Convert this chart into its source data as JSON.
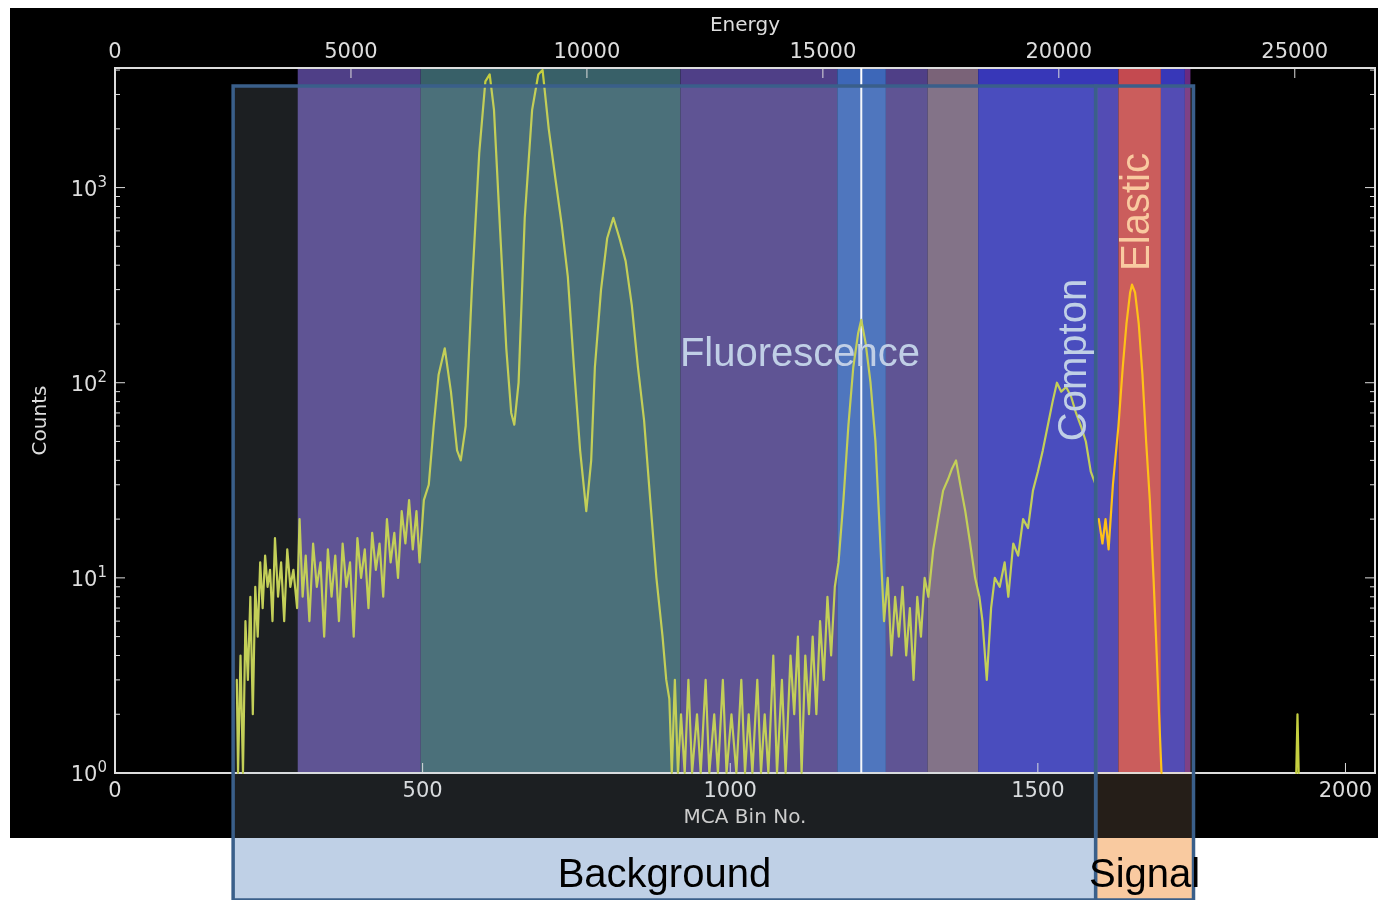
{
  "chart_data": {
    "type": "line",
    "xlabel": "MCA Bin No.",
    "ylabel": "Counts",
    "x2label": "Energy",
    "log": "y",
    "xlim": [
      0,
      2048
    ],
    "xticks": [
      0,
      500,
      1000,
      1500,
      2000
    ],
    "x2lim": [
      0,
      26700
    ],
    "x2ticks": [
      0,
      5000,
      10000,
      15000,
      20000,
      25000
    ],
    "ylim": [
      1,
      4100
    ],
    "yticks": [
      {
        "value": 1,
        "label": "10$^{0}$"
      },
      {
        "value": 2,
        "label": null
      },
      {
        "value": 3,
        "label": null
      },
      {
        "value": 4,
        "label": null
      },
      {
        "value": 5,
        "label": null
      },
      {
        "value": 6,
        "label": null
      },
      {
        "value": 7,
        "label": null
      },
      {
        "value": 8,
        "label": null
      },
      {
        "value": 9,
        "label": null
      },
      {
        "value": 10,
        "label": "10$^{1}$"
      },
      {
        "value": 20,
        "label": null
      },
      {
        "value": 30,
        "label": null
      },
      {
        "value": 40,
        "label": null
      },
      {
        "value": 50,
        "label": null
      },
      {
        "value": 60,
        "label": null
      },
      {
        "value": 70,
        "label": null
      },
      {
        "value": 80,
        "label": null
      },
      {
        "value": 90,
        "label": null
      },
      {
        "value": 100,
        "label": "10$^{2}$"
      },
      {
        "value": 200,
        "label": null
      },
      {
        "value": 300,
        "label": null
      },
      {
        "value": 400,
        "label": null
      },
      {
        "value": 500,
        "label": null
      },
      {
        "value": 600,
        "label": null
      },
      {
        "value": 700,
        "label": null
      },
      {
        "value": 800,
        "label": null
      },
      {
        "value": 900,
        "label": null
      },
      {
        "value": 1000,
        "label": "10$^{3}$"
      },
      {
        "value": 2000,
        "label": null
      },
      {
        "value": 3000,
        "label": null
      },
      {
        "value": 4000,
        "label": null
      }
    ],
    "bands": [
      {
        "axis": "x",
        "from": 297,
        "to": 497,
        "color": "#4f3f87"
      },
      {
        "axis": "x",
        "from": 497,
        "to": 919,
        "color": "#386068"
      },
      {
        "axis": "x",
        "from": 919,
        "to": 1174,
        "color": "#4f3f87"
      },
      {
        "axis": "x",
        "from": 1174,
        "to": 1253,
        "color": "#3d67b8"
      },
      {
        "axis": "x",
        "from": 1253,
        "to": 1321,
        "color": "#4f3f87"
      },
      {
        "axis": "x",
        "from": 1321,
        "to": 1403,
        "color": "#7a6378"
      },
      {
        "axis": "x",
        "from": 1403,
        "to": 1631,
        "color": "#3737b8"
      },
      {
        "axis": "x",
        "from": 1631,
        "to": 1700,
        "color": "#c44a50"
      },
      {
        "axis": "x",
        "from": 1700,
        "to": 1739,
        "color": "#3737b8"
      },
      {
        "axis": "x",
        "from": 1739,
        "to": 1748,
        "color": "#6a2a80"
      },
      {
        "axis": "x",
        "from": 192,
        "to": 1594,
        "color": "#bfd0e6",
        "label": "Background"
      },
      {
        "axis": "x",
        "from": 1594,
        "to": 1753,
        "color": "#f9caa0",
        "label": "Signal"
      }
    ],
    "ref_lines": [
      {
        "axis": "x",
        "value": 1213,
        "color": "#ffffff"
      }
    ],
    "annotations": [
      "Fluorescence",
      "Compton",
      "Elastic"
    ],
    "series": [
      {
        "color": "#c5cf40",
        "x": [
          198,
          200,
          204,
          208,
          212,
          216,
          220,
          224,
          228,
          232,
          236,
          240,
          244,
          248,
          252,
          256,
          260,
          265,
          270,
          275,
          280,
          285,
          290,
          296,
          300,
          305,
          310,
          316,
          322,
          328,
          334,
          340,
          346,
          352,
          358,
          364,
          370,
          376,
          382,
          388,
          394,
          400,
          406,
          412,
          418,
          424,
          430,
          436,
          442,
          448,
          454,
          460,
          466,
          472,
          478,
          484,
          490,
          495,
          502,
          510,
          518,
          526,
          536,
          546,
          556,
          562,
          570,
          580,
          592,
          602,
          609,
          616,
          626,
          636,
          644,
          649,
          656,
          666,
          678,
          688,
          695,
          705,
          716,
          726,
          736,
          746,
          756,
          766,
          774,
          780,
          790,
          800,
          810,
          820,
          830,
          840,
          850,
          860,
          870,
          880,
          890,
          896,
          901,
          905,
          910,
          915,
          920,
          926,
          932,
          938,
          946,
          952,
          960,
          966,
          974,
          980,
          988,
          994,
          1002,
          1010,
          1018,
          1024,
          1030,
          1036,
          1044,
          1050,
          1056,
          1062,
          1070,
          1076,
          1084,
          1090,
          1098,
          1104,
          1110,
          1116,
          1122,
          1128,
          1134,
          1140,
          1146,
          1152,
          1158,
          1164,
          1170,
          1176,
          1184,
          1192,
          1200,
          1208,
          1213,
          1220,
          1228,
          1236,
          1244,
          1250,
          1256,
          1262,
          1268,
          1274,
          1280,
          1286,
          1292,
          1298,
          1304,
          1310,
          1316,
          1322,
          1330,
          1338,
          1346,
          1354,
          1360,
          1367,
          1374,
          1382,
          1390,
          1398,
          1405,
          1410,
          1417,
          1424,
          1430,
          1438,
          1446,
          1452,
          1460,
          1468,
          1476,
          1484,
          1492,
          1500,
          1508,
          1516,
          1524,
          1531,
          1538,
          1546,
          1554,
          1562,
          1570,
          1578,
          1586,
          1594
        ],
        "values": [
          3,
          1,
          4,
          1,
          6,
          3,
          8,
          2,
          9,
          5,
          12,
          7,
          13,
          9,
          11,
          6,
          16,
          8,
          12,
          6,
          14,
          9,
          11,
          7,
          20,
          8,
          13,
          6,
          15,
          9,
          12,
          5,
          14,
          8,
          13,
          6,
          15,
          9,
          12,
          5,
          16,
          10,
          14,
          7,
          17,
          11,
          15,
          8,
          20,
          12,
          17,
          10,
          22,
          15,
          25,
          14,
          22,
          12,
          25,
          30,
          60,
          110,
          150,
          90,
          45,
          40,
          60,
          300,
          1500,
          3500,
          3800,
          2500,
          600,
          150,
          70,
          61,
          100,
          700,
          2500,
          3800,
          4000,
          2000,
          1100,
          650,
          350,
          120,
          45,
          22,
          40,
          120,
          300,
          550,
          700,
          550,
          420,
          250,
          120,
          64,
          25,
          10,
          5,
          3,
          2.4,
          1,
          3,
          1,
          2,
          1,
          3,
          1,
          2,
          1,
          3,
          1,
          2,
          1,
          3,
          1,
          2,
          1,
          3,
          1,
          2,
          1,
          3,
          1,
          2,
          1,
          4,
          1,
          3,
          1,
          4,
          2,
          5,
          1,
          4,
          2,
          5,
          2,
          6,
          3,
          8,
          4,
          9,
          12,
          25,
          60,
          120,
          180,
          210,
          160,
          100,
          50,
          15,
          6,
          10,
          4,
          8,
          5,
          9,
          4,
          7,
          3,
          8,
          5,
          10,
          8,
          14,
          20,
          28,
          32,
          36,
          40,
          30,
          22,
          15,
          10,
          8,
          6,
          3,
          7,
          10,
          9,
          12,
          8,
          15,
          13,
          20,
          18,
          28,
          35,
          45,
          60,
          80,
          100,
          90,
          95,
          85,
          70,
          60,
          50,
          35,
          30
        ]
      },
      {
        "color": "#ffc000",
        "x": [
          1599,
          1605,
          1610,
          1615,
          1622,
          1631,
          1638,
          1644,
          1650,
          1653,
          1658,
          1664,
          1670,
          1676,
          1682,
          1688,
          1692,
          1697,
          1701
        ],
        "values": [
          20,
          15,
          20,
          14,
          30,
          60,
          120,
          200,
          290,
          318,
          290,
          200,
          110,
          50,
          25,
          10,
          5,
          2,
          1
        ]
      },
      {
        "color": "#c5cf40",
        "x": [
          1920,
          1922,
          1924
        ],
        "values": [
          1,
          2,
          1
        ]
      }
    ]
  }
}
